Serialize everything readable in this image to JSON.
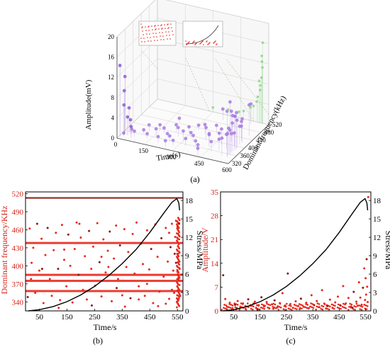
{
  "figure": {
    "panel_a_label": "(a)",
    "panel_b_label": "(b)",
    "panel_c_label": "(c)"
  },
  "colors": {
    "primary_red": "#e8281c",
    "dark_red": "#8b1a10",
    "purple": "#a77be0",
    "purple_light": "#c6b2f0",
    "green": "#8ed48a",
    "grid": "#d0d0d0",
    "axis_red_text": "#d2231a",
    "curve": "#000000"
  },
  "chart_data": [
    {
      "id": "a",
      "type": "scatter",
      "title": "",
      "xlabel": "Time(s)",
      "ylabel": "Dominant frequency(kHz)",
      "zlabel": "Amplitude(mV)",
      "x_ticks": [
        0,
        150,
        300,
        450,
        600
      ],
      "y_ticks": [
        320,
        360,
        400,
        440,
        480,
        520
      ],
      "z_ticks": [
        0,
        4,
        8,
        12,
        16,
        20
      ],
      "xlim": [
        0,
        600
      ],
      "ylim": [
        320,
        520
      ],
      "zlim": [
        0,
        20
      ],
      "series": [
        {
          "color": "#a77be0",
          "points": [
            [
              20,
              335,
              0.6
            ],
            [
              45,
              352,
              0.9
            ],
            [
              70,
              342,
              1.1
            ],
            [
              95,
              365,
              0.7
            ],
            [
              110,
              378,
              1.3
            ],
            [
              130,
              350,
              0.8
            ],
            [
              150,
              395,
              1.0
            ],
            [
              165,
              362,
              1.6
            ],
            [
              180,
              388,
              0.9
            ],
            [
              200,
              340,
              1.2
            ],
            [
              215,
              372,
              0.7
            ],
            [
              230,
              402,
              1.4
            ],
            [
              245,
              356,
              1.1
            ],
            [
              260,
              384,
              1.8
            ],
            [
              275,
              345,
              0.9
            ],
            [
              290,
              410,
              1.2
            ],
            [
              305,
              368,
              2.1
            ],
            [
              320,
              392,
              1.0
            ],
            [
              335,
              352,
              1.5
            ],
            [
              350,
              376,
              1.3
            ],
            [
              365,
              420,
              1.9
            ],
            [
              380,
              360,
              1.1
            ],
            [
              395,
              398,
              2.4
            ],
            [
              410,
              344,
              1.2
            ],
            [
              425,
              386,
              1.7
            ],
            [
              440,
              372,
              2.6
            ],
            [
              455,
              408,
              1.4
            ],
            [
              470,
              355,
              1.9
            ],
            [
              485,
              392,
              3.1
            ],
            [
              500,
              366,
              2.2
            ],
            [
              515,
              414,
              1.6
            ],
            [
              525,
              380,
              2.8
            ],
            [
              535,
              348,
              3.4
            ],
            [
              545,
              400,
              2.5
            ],
            [
              552,
              372,
              4.2
            ],
            [
              556,
              425,
              3.0
            ],
            [
              558,
              360,
              5.1
            ],
            [
              560,
              390,
              6.3
            ],
            [
              561,
              352,
              4.4
            ],
            [
              562,
              376,
              7.0
            ],
            [
              563,
              410,
              3.6
            ],
            [
              564,
              368,
              8.2
            ],
            [
              565,
              395,
              5.4
            ],
            [
              566,
              345,
              9.1
            ],
            [
              567,
              382,
              6.7
            ],
            [
              568,
              418,
              4.8
            ],
            [
              569,
              357,
              10.5
            ],
            [
              570,
              388,
              7.2
            ],
            [
              320,
              430,
              1.0
            ],
            [
              200,
              445,
              0.8
            ],
            [
              410,
              436,
              1.5
            ],
            [
              480,
              450,
              2.0
            ],
            [
              540,
              440,
              3.2
            ],
            [
              565,
              455,
              6.1
            ],
            [
              250,
              330,
              1.2
            ],
            [
              430,
              325,
              1.4
            ],
            [
              380,
              495,
              2.2
            ],
            [
              520,
              505,
              4.0
            ]
          ]
        },
        {
          "color": "#8ed48a",
          "points": [
            [
              440,
              520,
              1.2
            ],
            [
              470,
              515,
              1.8
            ],
            [
              500,
              522,
              2.5
            ],
            [
              520,
              518,
              3.1
            ],
            [
              535,
              520,
              4.0
            ],
            [
              545,
              516,
              5.2
            ],
            [
              552,
              521,
              6.4
            ],
            [
              558,
              517,
              7.5
            ],
            [
              562,
              519,
              9.0
            ],
            [
              566,
              520,
              11.0
            ],
            [
              568,
              515,
              13.5
            ],
            [
              570,
              518,
              16.0
            ],
            [
              300,
              519,
              0.9
            ],
            [
              380,
              521,
              1.1
            ],
            [
              560,
              523,
              12.0
            ],
            [
              555,
              514,
              8.5
            ]
          ]
        },
        {
          "color": "#8b5fcf",
          "points": [
            [
              5,
              330,
              14.0
            ],
            [
              12,
              345,
              8.5
            ],
            [
              18,
              338,
              6.0
            ],
            [
              26,
              356,
              4.8
            ],
            [
              33,
              342,
              3.6
            ],
            [
              40,
              350,
              2.8
            ],
            [
              60,
              335,
              2.2
            ],
            [
              8,
              352,
              11.0
            ]
          ]
        }
      ]
    },
    {
      "id": "b",
      "type": "scatter",
      "title": "",
      "xlabel": "Time/s",
      "ylabel": "Dominant frequency/KHz",
      "y2label": "Stress/MPa",
      "x_ticks": [
        50,
        150,
        250,
        350,
        450,
        550
      ],
      "y_ticks": [
        340,
        370,
        400,
        430,
        460,
        490,
        520
      ],
      "y2_ticks": [
        0,
        3,
        6,
        9,
        12,
        15,
        18
      ],
      "xlim": [
        0,
        570
      ],
      "ylim": [
        325,
        523
      ],
      "y2lim": [
        0,
        19.4
      ],
      "bands": [
        513,
        438,
        385,
        375,
        358
      ],
      "scatter_points": [
        [
          8,
          348
        ],
        [
          15,
          462
        ],
        [
          22,
          405
        ],
        [
          28,
          430
        ],
        [
          35,
          355
        ],
        [
          42,
          470
        ],
        [
          50,
          392
        ],
        [
          58,
          445
        ],
        [
          65,
          338
        ],
        [
          72,
          418
        ],
        [
          80,
          463
        ],
        [
          88,
          378
        ],
        [
          95,
          350
        ],
        [
          102,
          426
        ],
        [
          110,
          455
        ],
        [
          118,
          395
        ],
        [
          125,
          343
        ],
        [
          132,
          468
        ],
        [
          140,
          410
        ],
        [
          148,
          366
        ],
        [
          155,
          452
        ],
        [
          162,
          400
        ],
        [
          170,
          339
        ],
        [
          178,
          428
        ],
        [
          185,
          472
        ],
        [
          192,
          385
        ],
        [
          200,
          447
        ],
        [
          208,
          360
        ],
        [
          215,
          416
        ],
        [
          222,
          344
        ],
        [
          230,
          458
        ],
        [
          238,
          395
        ],
        [
          245,
          432
        ],
        [
          252,
          367
        ],
        [
          260,
          471
        ],
        [
          268,
          406
        ],
        [
          275,
          349
        ],
        [
          282,
          444
        ],
        [
          290,
          389
        ],
        [
          298,
          425
        ],
        [
          305,
          457
        ],
        [
          312,
          341
        ],
        [
          320,
          412
        ],
        [
          328,
          467
        ],
        [
          335,
          378
        ],
        [
          342,
          434
        ],
        [
          350,
          351
        ],
        [
          358,
          461
        ],
        [
          365,
          398
        ],
        [
          372,
          423
        ],
        [
          380,
          346
        ],
        [
          388,
          453
        ],
        [
          395,
          387
        ],
        [
          402,
          472
        ],
        [
          410,
          366
        ],
        [
          418,
          437
        ],
        [
          425,
          403
        ],
        [
          432,
          350
        ],
        [
          440,
          459
        ],
        [
          448,
          394
        ],
        [
          455,
          428
        ],
        [
          462,
          338
        ],
        [
          470,
          469
        ],
        [
          478,
          415
        ],
        [
          485,
          357
        ],
        [
          492,
          446
        ],
        [
          500,
          382
        ],
        [
          508,
          463
        ],
        [
          515,
          407
        ],
        [
          520,
          345
        ],
        [
          525,
          431
        ],
        [
          530,
          470
        ],
        [
          535,
          392
        ],
        [
          538,
          355
        ],
        [
          542,
          448
        ],
        [
          545,
          405
        ],
        [
          548,
          340
        ],
        [
          550,
          465
        ],
        [
          552,
          420
        ],
        [
          554,
          380
        ],
        [
          556,
          470
        ],
        [
          558,
          395
        ],
        [
          560,
          350
        ],
        [
          20,
          378
        ],
        [
          120,
          330
        ],
        [
          240,
          334
        ],
        [
          360,
          332
        ],
        [
          480,
          333
        ],
        [
          300,
          398
        ],
        [
          140,
          427
        ],
        [
          60,
          395
        ],
        [
          440,
          370
        ],
        [
          410,
          344
        ],
        [
          195,
          470
        ],
        [
          275,
          415
        ],
        [
          330,
          363
        ],
        [
          520,
          455
        ],
        [
          508,
          337
        ],
        [
          545,
          475
        ],
        [
          555,
          345
        ],
        [
          540,
          420
        ],
        [
          550,
          390
        ],
        [
          530,
          360
        ]
      ],
      "stress_curve": [
        [
          10,
          0.0
        ],
        [
          50,
          0.2
        ],
        [
          100,
          0.7
        ],
        [
          150,
          1.5
        ],
        [
          200,
          2.6
        ],
        [
          250,
          4.0
        ],
        [
          300,
          5.7
        ],
        [
          350,
          7.7
        ],
        [
          400,
          10.0
        ],
        [
          450,
          12.8
        ],
        [
          500,
          15.9
        ],
        [
          530,
          17.7
        ],
        [
          548,
          18.3
        ],
        [
          555,
          17.6
        ],
        [
          558,
          16.4
        ]
      ]
    },
    {
      "id": "c",
      "type": "scatter",
      "title": "",
      "xlabel": "Time/s",
      "ylabel": "Amplitude/V",
      "y2label": "Stress/MPa",
      "x_ticks": [
        50,
        150,
        250,
        350,
        450,
        550
      ],
      "y_ticks": [
        0,
        7,
        14,
        21,
        28,
        35
      ],
      "y2_ticks": [
        0,
        3,
        6,
        9,
        12,
        15,
        18
      ],
      "xlim": [
        0,
        570
      ],
      "ylim": [
        0,
        35
      ],
      "y2lim": [
        0,
        19.4
      ],
      "scatter_points": [
        [
          10,
          10.5
        ],
        [
          18,
          3.5
        ],
        [
          25,
          1.2
        ],
        [
          35,
          2.4
        ],
        [
          45,
          0.8
        ],
        [
          55,
          1.8
        ],
        [
          65,
          2.9
        ],
        [
          75,
          1.1
        ],
        [
          85,
          2.2
        ],
        [
          95,
          0.6
        ],
        [
          105,
          3.4
        ],
        [
          115,
          1.5
        ],
        [
          125,
          2.1
        ],
        [
          135,
          0.9
        ],
        [
          145,
          1.7
        ],
        [
          155,
          4.0
        ],
        [
          165,
          1.3
        ],
        [
          175,
          2.6
        ],
        [
          185,
          0.7
        ],
        [
          195,
          1.9
        ],
        [
          205,
          3.1
        ],
        [
          215,
          1.0
        ],
        [
          225,
          2.3
        ],
        [
          235,
          5.2
        ],
        [
          245,
          1.6
        ],
        [
          255,
          11.0
        ],
        [
          265,
          2.0
        ],
        [
          275,
          0.9
        ],
        [
          285,
          2.8
        ],
        [
          295,
          1.4
        ],
        [
          305,
          3.6
        ],
        [
          315,
          1.2
        ],
        [
          325,
          2.4
        ],
        [
          335,
          0.8
        ],
        [
          345,
          4.6
        ],
        [
          355,
          1.7
        ],
        [
          365,
          2.9
        ],
        [
          375,
          1.1
        ],
        [
          385,
          6.1
        ],
        [
          395,
          2.0
        ],
        [
          405,
          1.4
        ],
        [
          415,
          3.3
        ],
        [
          425,
          0.9
        ],
        [
          435,
          2.5
        ],
        [
          445,
          4.2
        ],
        [
          455,
          1.6
        ],
        [
          465,
          7.3
        ],
        [
          475,
          2.2
        ],
        [
          485,
          3.8
        ],
        [
          495,
          1.3
        ],
        [
          505,
          5.6
        ],
        [
          515,
          2.7
        ],
        [
          525,
          8.4
        ],
        [
          530,
          3.9
        ],
        [
          535,
          1.8
        ],
        [
          540,
          6.8
        ],
        [
          545,
          12.5
        ],
        [
          548,
          3.2
        ],
        [
          550,
          9.6
        ],
        [
          552,
          4.8
        ],
        [
          554,
          15.2
        ],
        [
          556,
          7.1
        ],
        [
          558,
          2.6
        ],
        [
          560,
          33.5
        ],
        [
          130,
          2.7
        ],
        [
          140,
          0.4
        ],
        [
          60,
          0.5
        ],
        [
          200,
          0.6
        ],
        [
          300,
          0.5
        ],
        [
          400,
          0.7
        ],
        [
          500,
          0.9
        ],
        [
          520,
          1.5
        ]
      ],
      "stress_curve": [
        [
          10,
          0.0
        ],
        [
          50,
          0.2
        ],
        [
          100,
          0.7
        ],
        [
          150,
          1.5
        ],
        [
          200,
          2.6
        ],
        [
          250,
          4.0
        ],
        [
          300,
          5.7
        ],
        [
          350,
          7.7
        ],
        [
          400,
          10.0
        ],
        [
          450,
          12.8
        ],
        [
          500,
          15.9
        ],
        [
          530,
          17.7
        ],
        [
          548,
          18.3
        ],
        [
          555,
          17.6
        ],
        [
          558,
          16.4
        ]
      ]
    }
  ]
}
